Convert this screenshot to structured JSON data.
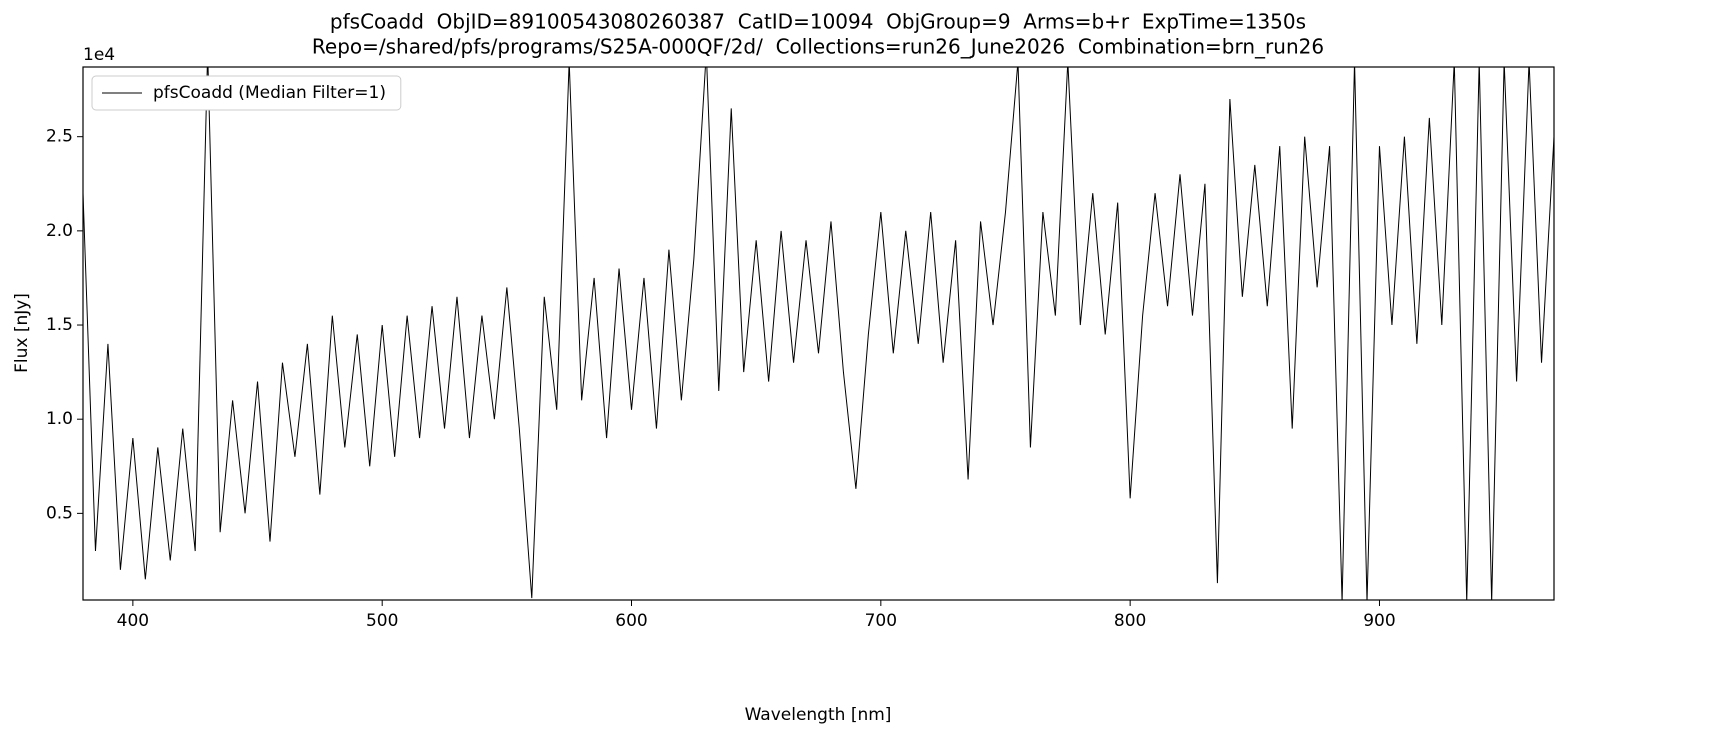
{
  "chart_data": {
    "type": "line",
    "title": "pfsCoadd  ObjID=89100543080260387  CatID=10094  ObjGroup=9  Arms=b+r  ExpTime=1350s",
    "subtitle": "Repo=/shared/pfs/programs/S25A-000QF/2d/  Collections=run26_June2026  Combination=brn_run26",
    "x_label": "Wavelength [nm]",
    "y_label": "Flux [nJy]",
    "y_offset_label": "1e4",
    "xlim": [
      380,
      970
    ],
    "ylim": [
      400,
      28700
    ],
    "xticks": [
      400,
      500,
      600,
      700,
      800,
      900
    ],
    "yticks": [
      {
        "value": 5000,
        "label": "0.5"
      },
      {
        "value": 10000,
        "label": "1.0"
      },
      {
        "value": 15000,
        "label": "1.5"
      },
      {
        "value": 20000,
        "label": "2.0"
      },
      {
        "value": 25000,
        "label": "2.5"
      }
    ],
    "legend": "upper left",
    "x": [
      380,
      385,
      390,
      395,
      400,
      405,
      410,
      415,
      420,
      425,
      430,
      435,
      440,
      445,
      450,
      455,
      460,
      465,
      470,
      475,
      480,
      485,
      490,
      495,
      500,
      505,
      510,
      515,
      520,
      525,
      530,
      535,
      540,
      545,
      550,
      555,
      560,
      565,
      570,
      575,
      580,
      585,
      590,
      595,
      600,
      605,
      610,
      615,
      620,
      625,
      630,
      635,
      640,
      645,
      650,
      655,
      660,
      665,
      670,
      675,
      680,
      685,
      690,
      695,
      700,
      705,
      710,
      715,
      720,
      725,
      730,
      735,
      740,
      745,
      750,
      755,
      760,
      765,
      770,
      775,
      780,
      785,
      790,
      795,
      800,
      805,
      810,
      815,
      820,
      825,
      830,
      835,
      840,
      845,
      850,
      855,
      860,
      865,
      870,
      875,
      880,
      885,
      890,
      895,
      900,
      905,
      910,
      915,
      920,
      925,
      930,
      935,
      940,
      945,
      950,
      955,
      960,
      965,
      970
    ],
    "series": [
      {
        "name": "pfsCoadd (Median Filter=1)",
        "color": "#000000",
        "values": [
          22000,
          3000,
          14000,
          2000,
          9000,
          1500,
          8500,
          2500,
          9500,
          3000,
          29500,
          4000,
          11000,
          5000,
          12000,
          3500,
          13000,
          8000,
          14000,
          6000,
          15500,
          8500,
          14500,
          7500,
          15000,
          8000,
          15500,
          9000,
          16000,
          9500,
          16500,
          9000,
          15500,
          10000,
          17000,
          9500,
          500,
          16500,
          10500,
          29000,
          11000,
          17500,
          9000,
          18000,
          10500,
          17500,
          9500,
          19000,
          11000,
          18500,
          29500,
          11500,
          26500,
          12500,
          19500,
          12000,
          20000,
          13000,
          19500,
          13500,
          20500,
          12500,
          6300,
          14500,
          21000,
          13500,
          20000,
          14000,
          21000,
          13000,
          19500,
          6800,
          20500,
          15000,
          21000,
          29000,
          8500,
          21000,
          15500,
          29000,
          15000,
          22000,
          14500,
          21500,
          5800,
          15500,
          22000,
          16000,
          23000,
          15500,
          22500,
          1300,
          27000,
          16500,
          23500,
          16000,
          24500,
          9500,
          25000,
          17000,
          24500,
          300,
          29000,
          300,
          24500,
          15000,
          25000,
          14000,
          26000,
          15000,
          29000,
          300,
          29000,
          300,
          29000,
          12000,
          29000,
          13000,
          25000
        ]
      }
    ]
  }
}
